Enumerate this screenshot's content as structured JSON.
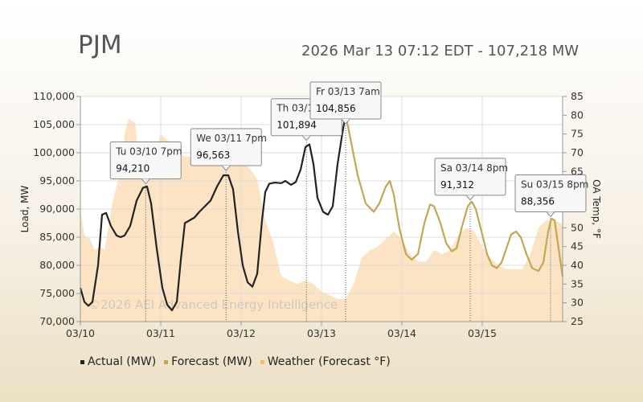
{
  "header": {
    "title": "PJM",
    "subtitle": "2026 Mar 13 07:12 EDT - 107,218 MW"
  },
  "watermark": "©2026 AEI Advanced Energy Intelligence",
  "legend": [
    {
      "label": "Actual (MW)",
      "color": "#222222"
    },
    {
      "label": "Forecast (MW)",
      "color": "#c2a855"
    },
    {
      "label": "Weather (Forecast °F)",
      "color": "#f5b96a"
    }
  ],
  "tooltips": [
    {
      "label": "Tu 03/10 7pm",
      "value": "94,210",
      "x": 0.8125,
      "y": 94210
    },
    {
      "label": "We 03/11 7pm",
      "value": "96,563",
      "x": 1.8125,
      "y": 96563
    },
    {
      "label": "Th 03/1",
      "value": "101,894",
      "x": 2.8125,
      "y": 101894
    },
    {
      "label": "Fr 03/13 7am",
      "value": "104,856",
      "x": 3.3,
      "y": 104856,
      "highlight": true
    },
    {
      "label": "Sa 03/14 8pm",
      "value": "91,312",
      "x": 4.85,
      "y": 91312
    },
    {
      "label": "Su 03/15 8pm",
      "value": "88,356",
      "x": 5.85,
      "y": 88356
    }
  ],
  "chart_data": {
    "type": "line",
    "x_ticks": [
      "03/10",
      "03/11",
      "03/12",
      "03/13",
      "03/14",
      "03/15"
    ],
    "xlim": [
      0,
      6
    ],
    "ylabel": "Load, MW",
    "ylim": [
      70000,
      110000
    ],
    "y_ticks": [
      "70,000",
      "75,000",
      "80,000",
      "85,000",
      "90,000",
      "95,000",
      "100,000",
      "105,000",
      "110,000"
    ],
    "y2label": "OA Temp, °F",
    "y2lim": [
      25,
      85
    ],
    "y2_ticks": [
      "25",
      "30",
      "35",
      "40",
      "45",
      "50",
      "55",
      "60",
      "65",
      "70",
      "75",
      "80",
      "85"
    ],
    "grid": true,
    "series": [
      {
        "name": "Actual (MW)",
        "color": "#222222",
        "points": [
          [
            0,
            76000
          ],
          [
            0.05,
            73500
          ],
          [
            0.1,
            72800
          ],
          [
            0.15,
            73500
          ],
          [
            0.22,
            80000
          ],
          [
            0.27,
            89000
          ],
          [
            0.32,
            89300
          ],
          [
            0.38,
            87000
          ],
          [
            0.45,
            85300
          ],
          [
            0.5,
            85000
          ],
          [
            0.55,
            85300
          ],
          [
            0.62,
            87000
          ],
          [
            0.7,
            91500
          ],
          [
            0.78,
            93800
          ],
          [
            0.83,
            94000
          ],
          [
            0.88,
            91000
          ],
          [
            0.95,
            83000
          ],
          [
            1.02,
            76000
          ],
          [
            1.08,
            73000
          ],
          [
            1.14,
            72000
          ],
          [
            1.2,
            73500
          ],
          [
            1.25,
            81000
          ],
          [
            1.3,
            87500
          ],
          [
            1.36,
            88000
          ],
          [
            1.42,
            88500
          ],
          [
            1.48,
            89500
          ],
          [
            1.55,
            90500
          ],
          [
            1.62,
            91500
          ],
          [
            1.7,
            94000
          ],
          [
            1.78,
            96000
          ],
          [
            1.84,
            96000
          ],
          [
            1.9,
            93500
          ],
          [
            1.96,
            86000
          ],
          [
            2.02,
            80000
          ],
          [
            2.08,
            77000
          ],
          [
            2.14,
            76200
          ],
          [
            2.2,
            78500
          ],
          [
            2.26,
            88000
          ],
          [
            2.3,
            93000
          ],
          [
            2.35,
            94500
          ],
          [
            2.42,
            94700
          ],
          [
            2.5,
            94600
          ],
          [
            2.55,
            95000
          ],
          [
            2.62,
            94300
          ],
          [
            2.68,
            94800
          ],
          [
            2.74,
            97000
          ],
          [
            2.8,
            101000
          ],
          [
            2.85,
            101500
          ],
          [
            2.9,
            98000
          ],
          [
            2.95,
            92000
          ],
          [
            3.02,
            89500
          ],
          [
            3.08,
            89000
          ],
          [
            3.14,
            90500
          ],
          [
            3.2,
            98000
          ],
          [
            3.26,
            103500
          ],
          [
            3.3,
            106800
          ]
        ]
      },
      {
        "name": "Forecast (MW)",
        "color": "#c2a855",
        "points": [
          [
            3.3,
            106800
          ],
          [
            3.36,
            102500
          ],
          [
            3.45,
            96000
          ],
          [
            3.55,
            91000
          ],
          [
            3.65,
            89500
          ],
          [
            3.72,
            91000
          ],
          [
            3.8,
            94000
          ],
          [
            3.85,
            95000
          ],
          [
            3.9,
            92500
          ],
          [
            3.97,
            86500
          ],
          [
            4.05,
            82000
          ],
          [
            4.12,
            81000
          ],
          [
            4.2,
            82000
          ],
          [
            4.28,
            87500
          ],
          [
            4.35,
            90800
          ],
          [
            4.4,
            90500
          ],
          [
            4.48,
            87500
          ],
          [
            4.55,
            84000
          ],
          [
            4.62,
            82500
          ],
          [
            4.68,
            83000
          ],
          [
            4.75,
            87000
          ],
          [
            4.82,
            90500
          ],
          [
            4.87,
            91300
          ],
          [
            4.92,
            90000
          ],
          [
            5.0,
            85500
          ],
          [
            5.06,
            82000
          ],
          [
            5.12,
            80000
          ],
          [
            5.18,
            79500
          ],
          [
            5.24,
            80500
          ],
          [
            5.3,
            83000
          ],
          [
            5.36,
            85500
          ],
          [
            5.42,
            86000
          ],
          [
            5.48,
            85000
          ],
          [
            5.55,
            82000
          ],
          [
            5.62,
            79500
          ],
          [
            5.7,
            79000
          ],
          [
            5.76,
            80500
          ],
          [
            5.82,
            86000
          ],
          [
            5.86,
            88300
          ],
          [
            5.9,
            88000
          ],
          [
            5.96,
            82000
          ],
          [
            6.0,
            78000
          ]
        ]
      },
      {
        "name": "Weather (Forecast °F)",
        "color": "#f5b96a",
        "axis": "y2",
        "points": [
          [
            0,
            55
          ],
          [
            0.05,
            48
          ],
          [
            0.12,
            47
          ],
          [
            0.18,
            44
          ],
          [
            0.25,
            45
          ],
          [
            0.3,
            44
          ],
          [
            0.4,
            57
          ],
          [
            0.5,
            65
          ],
          [
            0.55,
            75
          ],
          [
            0.6,
            79
          ],
          [
            0.68,
            78
          ],
          [
            0.72,
            70
          ],
          [
            0.8,
            67
          ],
          [
            0.9,
            68
          ],
          [
            1.0,
            75
          ],
          [
            1.1,
            73
          ],
          [
            1.2,
            70
          ],
          [
            1.3,
            69
          ],
          [
            1.4,
            69
          ],
          [
            1.5,
            69
          ],
          [
            1.6,
            68
          ],
          [
            1.7,
            69
          ],
          [
            1.8,
            69
          ],
          [
            1.9,
            68
          ],
          [
            2.0,
            69
          ],
          [
            2.1,
            66
          ],
          [
            2.2,
            63
          ],
          [
            2.3,
            52
          ],
          [
            2.4,
            46
          ],
          [
            2.5,
            37
          ],
          [
            2.6,
            36
          ],
          [
            2.7,
            35
          ],
          [
            2.8,
            36
          ],
          [
            2.9,
            35
          ],
          [
            3.0,
            33
          ],
          [
            3.1,
            32
          ],
          [
            3.2,
            31
          ],
          [
            3.3,
            31
          ],
          [
            3.4,
            35
          ],
          [
            3.5,
            42
          ],
          [
            3.6,
            44
          ],
          [
            3.7,
            45
          ],
          [
            3.8,
            47
          ],
          [
            3.9,
            49
          ],
          [
            4.0,
            47
          ],
          [
            4.1,
            43
          ],
          [
            4.2,
            41
          ],
          [
            4.3,
            41
          ],
          [
            4.4,
            44
          ],
          [
            4.5,
            43
          ],
          [
            4.6,
            44
          ],
          [
            4.7,
            48
          ],
          [
            4.8,
            50
          ],
          [
            4.9,
            49
          ],
          [
            5.0,
            45
          ],
          [
            5.1,
            42
          ],
          [
            5.2,
            40
          ],
          [
            5.3,
            39
          ],
          [
            5.4,
            39
          ],
          [
            5.5,
            39
          ],
          [
            5.6,
            43
          ],
          [
            5.7,
            50
          ],
          [
            5.8,
            52
          ],
          [
            5.9,
            52
          ],
          [
            6.0,
            51
          ]
        ]
      }
    ]
  }
}
